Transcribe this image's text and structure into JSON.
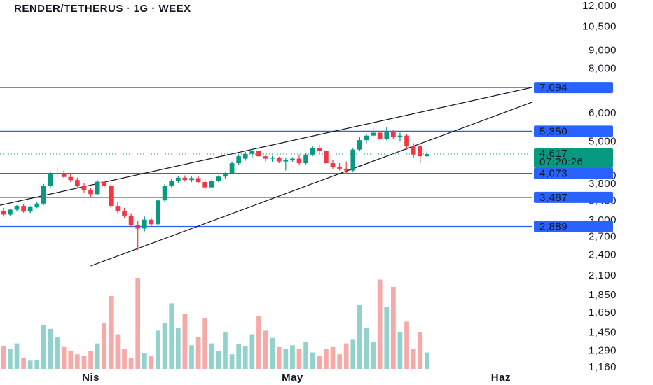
{
  "chart_data": {
    "type": "candlestick",
    "title": "RENDER/TETHERUS · 1G · WEEX",
    "log_scale": true,
    "xlim": [
      -0.5,
      78.7
    ],
    "ylim": [
      1160,
      12000
    ],
    "xticks": [
      {
        "value": 13,
        "label": "Nis"
      },
      {
        "value": 43,
        "label": "May"
      },
      {
        "value": 74,
        "label": "Haz"
      }
    ],
    "yticks": [
      {
        "value": 12000,
        "label": "12,000"
      },
      {
        "value": 10500,
        "label": "10,500"
      },
      {
        "value": 9000,
        "label": "9,000"
      },
      {
        "value": 8000,
        "label": "8,000"
      },
      {
        "value": 6000,
        "label": "6,000"
      },
      {
        "value": 5000,
        "label": "5,000"
      },
      {
        "value": 4000,
        "label": "4,000"
      },
      {
        "value": 3800,
        "label": "3,800"
      },
      {
        "value": 3400,
        "label": "3,400"
      },
      {
        "value": 3000,
        "label": "3,000"
      },
      {
        "value": 2700,
        "label": "2,700"
      },
      {
        "value": 2400,
        "label": "2,400"
      },
      {
        "value": 2100,
        "label": "2,100"
      },
      {
        "value": 1850,
        "label": "1,850"
      },
      {
        "value": 1650,
        "label": "1,650"
      },
      {
        "value": 1450,
        "label": "1,450"
      },
      {
        "value": 1290,
        "label": "1,290"
      },
      {
        "value": 1160,
        "label": "1,160"
      }
    ],
    "up_color": "#089981",
    "down_color": "#f23645",
    "volume_up_color": "#92d2cc",
    "volume_down_color": "#f7a9a7",
    "open": [
      3200,
      3120,
      3220,
      3300,
      3180,
      3280,
      3350,
      3750,
      4050,
      4080,
      3980,
      3900,
      3760,
      3650,
      3560,
      3860,
      3760,
      3300,
      3200,
      3100,
      2920,
      2850,
      3020,
      2930,
      3420,
      3760,
      3880,
      3960,
      3900,
      3950,
      3850,
      3720,
      3880,
      3990,
      4080,
      4350,
      4480,
      4620,
      4700,
      4550,
      4480,
      4500,
      4400,
      4450,
      4480,
      4350,
      4600,
      4800,
      4700,
      4350,
      4250,
      4200,
      4150,
      4750,
      5050,
      5200,
      5300,
      5100,
      5350,
      5150,
      5200,
      4850,
      4850,
      4550
    ],
    "high": [
      3260,
      3240,
      3320,
      3340,
      3300,
      3380,
      3800,
      4100,
      4230,
      4150,
      4050,
      3960,
      3820,
      3700,
      3900,
      3900,
      3800,
      3380,
      3260,
      3150,
      3000,
      3080,
      3060,
      3450,
      3800,
      3920,
      4000,
      4020,
      3990,
      4000,
      3900,
      3920,
      4020,
      4100,
      4400,
      4600,
      4680,
      4800,
      4720,
      4600,
      4560,
      4540,
      4500,
      4520,
      4600,
      4650,
      4850,
      4900,
      4750,
      4450,
      4350,
      4400,
      4800,
      5150,
      5250,
      5500,
      5350,
      5500,
      5400,
      5300,
      5250,
      4950,
      4900,
      4700
    ],
    "low": [
      3080,
      3100,
      3180,
      3160,
      3150,
      3250,
      3320,
      3700,
      3980,
      3950,
      3850,
      3720,
      3600,
      3500,
      3540,
      3700,
      3250,
      3150,
      3050,
      2880,
      2480,
      2800,
      2880,
      2900,
      3380,
      3720,
      3830,
      3860,
      3850,
      3820,
      3680,
      3700,
      3850,
      3930,
      4050,
      4300,
      4420,
      4500,
      4500,
      4400,
      4380,
      4350,
      4150,
      4380,
      4300,
      4320,
      4550,
      4650,
      4300,
      4200,
      4150,
      4050,
      4100,
      4700,
      4950,
      5150,
      5050,
      5050,
      5100,
      5000,
      4750,
      4500,
      4350,
      4500
    ],
    "close": [
      3120,
      3220,
      3300,
      3180,
      3280,
      3350,
      3750,
      4050,
      4080,
      3980,
      3900,
      3760,
      3650,
      3560,
      3860,
      3760,
      3300,
      3200,
      3100,
      2920,
      2850,
      3020,
      2930,
      3420,
      3760,
      3880,
      3960,
      3900,
      3950,
      3850,
      3720,
      3880,
      3990,
      4080,
      4350,
      4550,
      4620,
      4700,
      4550,
      4480,
      4500,
      4400,
      4450,
      4480,
      4350,
      4600,
      4800,
      4700,
      4350,
      4250,
      4200,
      4150,
      4750,
      5050,
      5200,
      5300,
      5100,
      5350,
      5150,
      5200,
      4850,
      4600,
      4550,
      4617
    ],
    "volume": [
      25,
      22,
      28,
      12,
      9,
      10,
      48,
      44,
      35,
      24,
      20,
      16,
      14,
      20,
      28,
      50,
      80,
      38,
      22,
      12,
      100,
      17,
      14,
      42,
      50,
      72,
      45,
      60,
      26,
      35,
      56,
      28,
      20,
      40,
      16,
      27,
      25,
      38,
      58,
      42,
      34,
      24,
      22,
      26,
      22,
      30,
      18,
      14,
      22,
      24,
      16,
      28,
      32,
      70,
      45,
      30,
      98,
      68,
      90,
      40,
      52,
      22,
      40,
      18
    ],
    "levels": [
      {
        "value": 7094,
        "label": "7,094"
      },
      {
        "value": 5350,
        "label": "5,350"
      },
      {
        "value": 4073,
        "label": "4,073"
      },
      {
        "value": 3487,
        "label": "3,487"
      },
      {
        "value": 2889,
        "label": "2,889"
      }
    ],
    "level_color": "#2962ff",
    "trendlines": [
      {
        "x": [
          -0.5,
          78.6
        ],
        "y": [
          3315,
          7096
        ]
      },
      {
        "x": [
          13,
          78.6
        ],
        "y": [
          2237,
          6453
        ]
      }
    ],
    "last_price": {
      "value": 4617,
      "label": "4,617"
    },
    "countdown": "07:20:26"
  }
}
